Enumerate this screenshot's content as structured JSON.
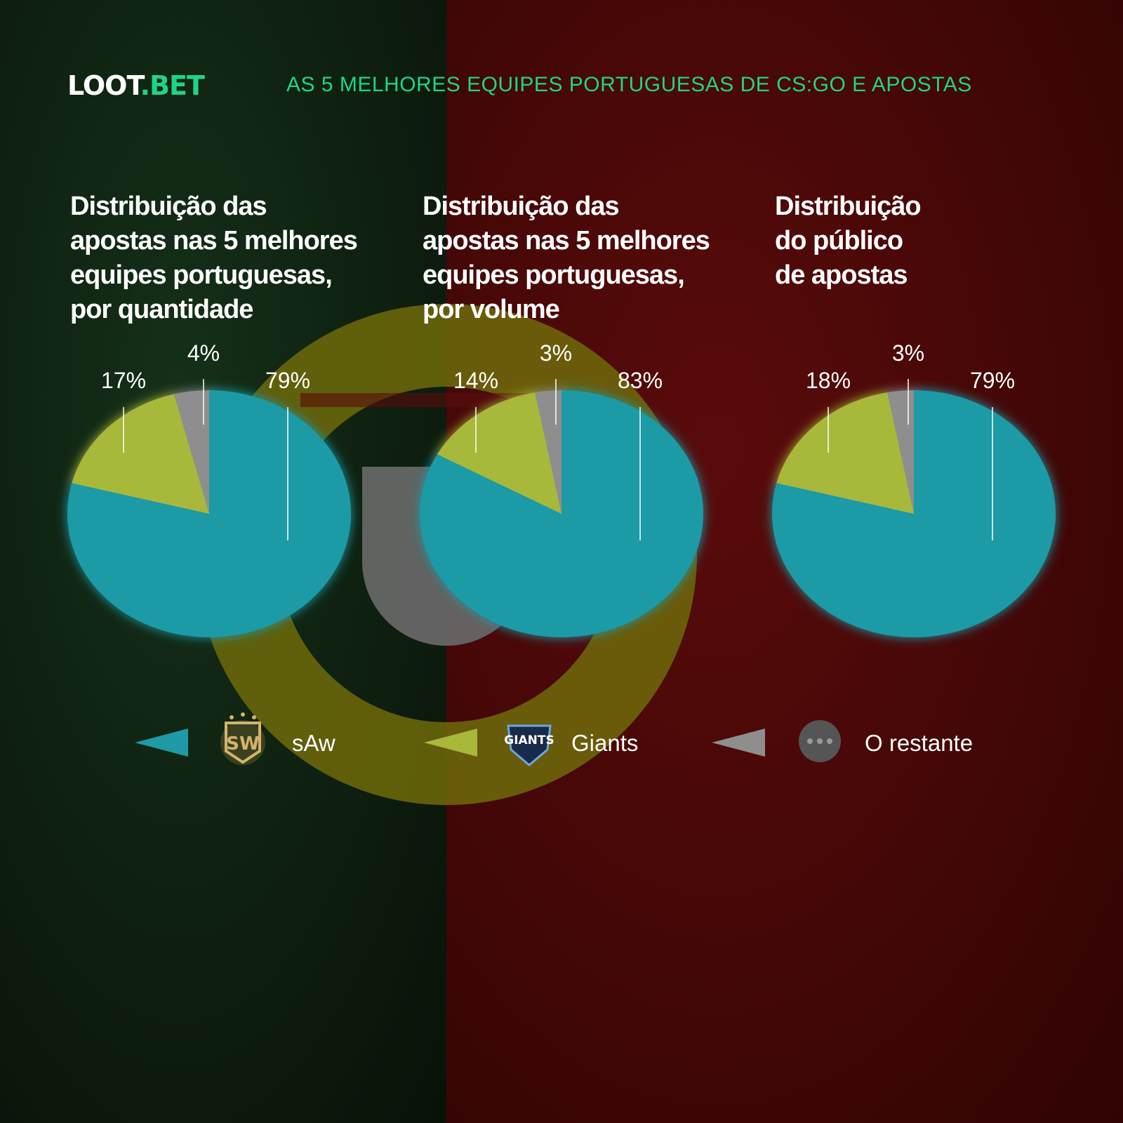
{
  "header": {
    "logo_white": "LOOT",
    "logo_green": ".BET",
    "headline": "AS 5 MELHORES EQUIPES PORTUGUESAS DE CS:GO E APOSTAS"
  },
  "colors": {
    "accent": "#1fd487",
    "saw": "#1f9aa6",
    "giants": "#a8b83a",
    "rest": "#8e8e8e",
    "bg_green": "#0c1c10",
    "bg_red": "#4a0808"
  },
  "legend": [
    {
      "label": "sAw",
      "icon": "saw-logo-icon",
      "color": "#1f9aa6"
    },
    {
      "label": "Giants",
      "icon": "giants-logo-icon",
      "color": "#a8b83a"
    },
    {
      "label": "O restante",
      "icon": "ellipsis-icon",
      "color": "#8e8e8e"
    }
  ],
  "chart_data": [
    {
      "type": "pie",
      "title": "Distribuição das apostas nas 5 melhores equipes portuguesas, por quantidade",
      "title_lines": [
        "Distribuição das",
        "apostas nas 5 melhores",
        "equipes portuguesas,",
        "por quantidade"
      ],
      "series": [
        {
          "values": [
            79,
            17,
            4
          ]
        }
      ],
      "categories": [
        "sAw",
        "Giants",
        "O restante"
      ],
      "labels": [
        "79%",
        "17%",
        "4%"
      ]
    },
    {
      "type": "pie",
      "title": "Distribuição das apostas nas 5 melhores equipes portuguesas, por volume",
      "title_lines": [
        "Distribuição das",
        "apostas nas 5 melhores",
        "equipes portuguesas,",
        "por volume"
      ],
      "series": [
        {
          "values": [
            83,
            14,
            3
          ]
        }
      ],
      "categories": [
        "sAw",
        "Giants",
        "O restante"
      ],
      "labels": [
        "83%",
        "14%",
        "3%"
      ]
    },
    {
      "type": "pie",
      "title": "Distribuição do público de apostas",
      "title_lines": [
        "Distribuição",
        "do público",
        "de apostas"
      ],
      "series": [
        {
          "values": [
            79,
            18,
            3
          ]
        }
      ],
      "categories": [
        "sAw",
        "Giants",
        "O restante"
      ],
      "labels": [
        "79%",
        "18%",
        "3%"
      ]
    }
  ]
}
